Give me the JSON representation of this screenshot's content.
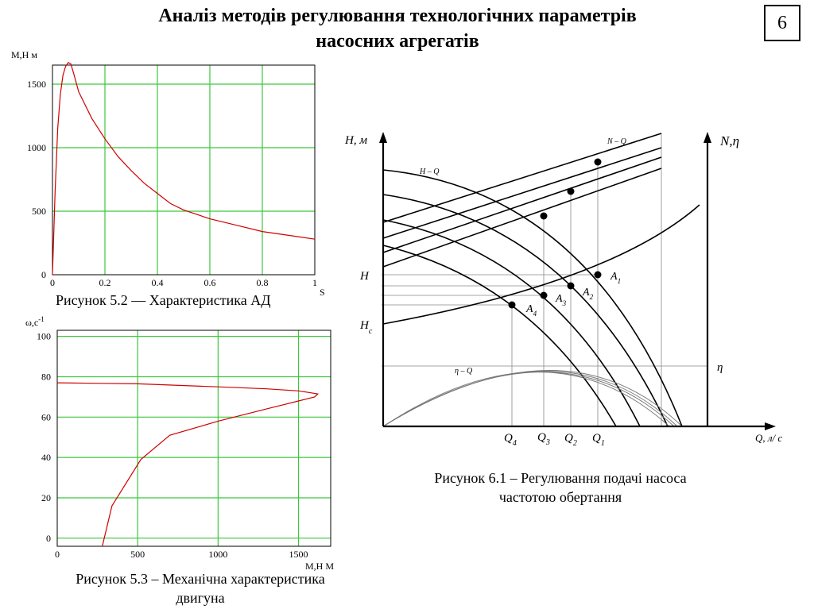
{
  "title": {
    "line1": "Аналіз методів регулювання технологічних параметрів",
    "line2": "насосних агрегатів"
  },
  "page_number": "6",
  "chart_data": [
    {
      "type": "line",
      "caption": "Рисунок 5.2 — Характеристика АД",
      "ylabel": "M,Н м",
      "xlabel": "S",
      "x_ticks": [
        "0",
        "0.2",
        "0.4",
        "0.6",
        "0.8",
        "1"
      ],
      "y_ticks": [
        "0",
        "500",
        "1000",
        "1500"
      ],
      "xlim": [
        0,
        1
      ],
      "ylim": [
        0,
        1650
      ],
      "grid": true,
      "series": [
        {
          "color": "#d00000",
          "x": [
            0,
            0.01,
            0.02,
            0.03,
            0.04,
            0.05,
            0.06,
            0.07,
            0.08,
            0.1,
            0.15,
            0.2,
            0.25,
            0.3,
            0.35,
            0.4,
            0.45,
            0.5,
            0.6,
            0.7,
            0.8,
            0.9,
            1.0
          ],
          "y": [
            0,
            650,
            1150,
            1420,
            1570,
            1640,
            1670,
            1660,
            1590,
            1440,
            1230,
            1070,
            930,
            820,
            720,
            640,
            560,
            510,
            440,
            390,
            340,
            310,
            280
          ]
        }
      ]
    },
    {
      "type": "line",
      "caption_line1": "Рисунок 5.3 – Механічна характеристика",
      "caption_line2": "двигуна",
      "ylabel": "ω,с",
      "ylabel_sup": "-1",
      "xlabel": "M,Н М",
      "x_ticks": [
        "0",
        "500",
        "1000",
        "1500"
      ],
      "y_ticks": [
        "0",
        "20",
        "40",
        "60",
        "80",
        "100"
      ],
      "xlim": [
        0,
        1700
      ],
      "ylim": [
        -4,
        103
      ],
      "grid": true,
      "series": [
        {
          "color": "#d00000",
          "x": [
            0,
            500,
            1000,
            1300,
            1500,
            1580,
            1620,
            1600,
            1500,
            1300,
            1100,
            1000,
            700,
            520,
            340,
            280
          ],
          "y": [
            77,
            76.5,
            75,
            74,
            73,
            72,
            71.5,
            70,
            68,
            64,
            60,
            58,
            51,
            39,
            16,
            -4
          ]
        }
      ]
    },
    {
      "type": "diagram",
      "caption_line1": "Рисунок 6.1 – Регулювання подачі насоса",
      "caption_line2": "частотою обертання",
      "left_axis_label": "H, м",
      "right_axis_label": "N,η",
      "x_axis_label": "Q, л/ с",
      "curve_labels": [
        "H – Q",
        "N – Q",
        "η – Q"
      ],
      "left_marks": [
        "H",
        "H",
        "c"
      ],
      "right_mark": "η",
      "flow_marks": [
        {
          "q": "Q",
          "sub": "4"
        },
        {
          "q": "Q",
          "sub": "3"
        },
        {
          "q": "Q",
          "sub": "2"
        },
        {
          "q": "Q",
          "sub": "1"
        }
      ],
      "points": [
        {
          "a": "A",
          "sub": "1"
        },
        {
          "a": "A",
          "sub": "2"
        },
        {
          "a": "A",
          "sub": "3"
        },
        {
          "a": "A",
          "sub": "4"
        }
      ]
    }
  ]
}
